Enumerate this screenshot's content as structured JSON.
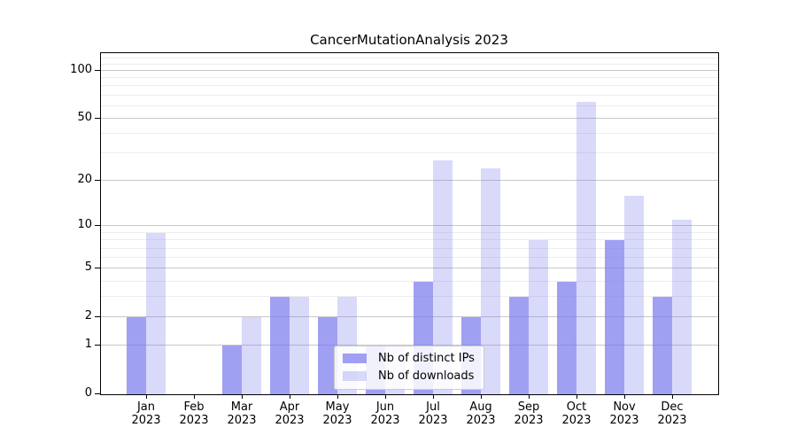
{
  "chart_data": {
    "type": "bar",
    "title": "CancerMutationAnalysis 2023",
    "categories": [
      "Jan 2023",
      "Feb 2023",
      "Mar 2023",
      "Apr 2023",
      "May 2023",
      "Jun 2023",
      "Jul 2023",
      "Aug 2023",
      "Sep 2023",
      "Oct 2023",
      "Nov 2023",
      "Dec 2023"
    ],
    "months": [
      "Jan",
      "Feb",
      "Mar",
      "Apr",
      "May",
      "Jun",
      "Jul",
      "Aug",
      "Sep",
      "Oct",
      "Nov",
      "Dec"
    ],
    "year": "2023",
    "series": [
      {
        "name": "Nb of distinct IPs",
        "color": "rgba(119,119,238,0.70)",
        "values": [
          2,
          0,
          1,
          3,
          2,
          1,
          4,
          2,
          3,
          4,
          8,
          3
        ]
      },
      {
        "name": "Nb of downloads",
        "color": "rgba(119,119,238,0.28)",
        "values": [
          9,
          0,
          2,
          3,
          3,
          1,
          27,
          24,
          8,
          64,
          16,
          11
        ]
      }
    ],
    "yscale": "log1p",
    "yticks": [
      0,
      1,
      2,
      5,
      10,
      20,
      50,
      100
    ],
    "yticks_minor": [
      3,
      4,
      6,
      7,
      8,
      9,
      30,
      40,
      60,
      70,
      80,
      90,
      110,
      120
    ],
    "ylim": [
      0,
      127
    ],
    "grid": "on",
    "legend_position": "inside lower-center",
    "bar_base_color": "#7777ee"
  }
}
